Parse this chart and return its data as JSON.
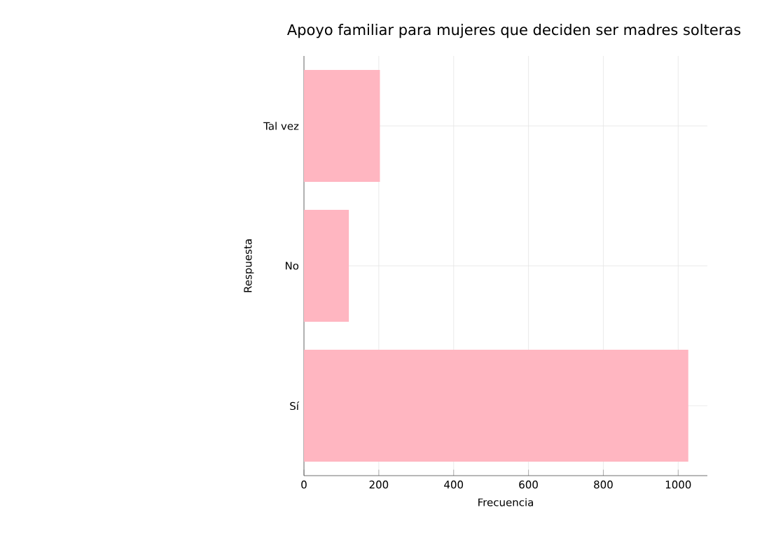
{
  "chart_data": {
    "type": "bar",
    "orientation": "horizontal",
    "title": "Apoyo familiar para mujeres que deciden ser madres solteras",
    "xlabel": "Frecuencia",
    "ylabel": "Respuesta",
    "categories": [
      "Tal vez",
      "No",
      "Sí"
    ],
    "values": [
      203,
      120,
      1027
    ],
    "color": "#ffb6c1",
    "xlim": [
      0,
      1078
    ],
    "xticks": [
      0,
      200,
      400,
      600,
      800,
      1000
    ],
    "grid": true
  }
}
